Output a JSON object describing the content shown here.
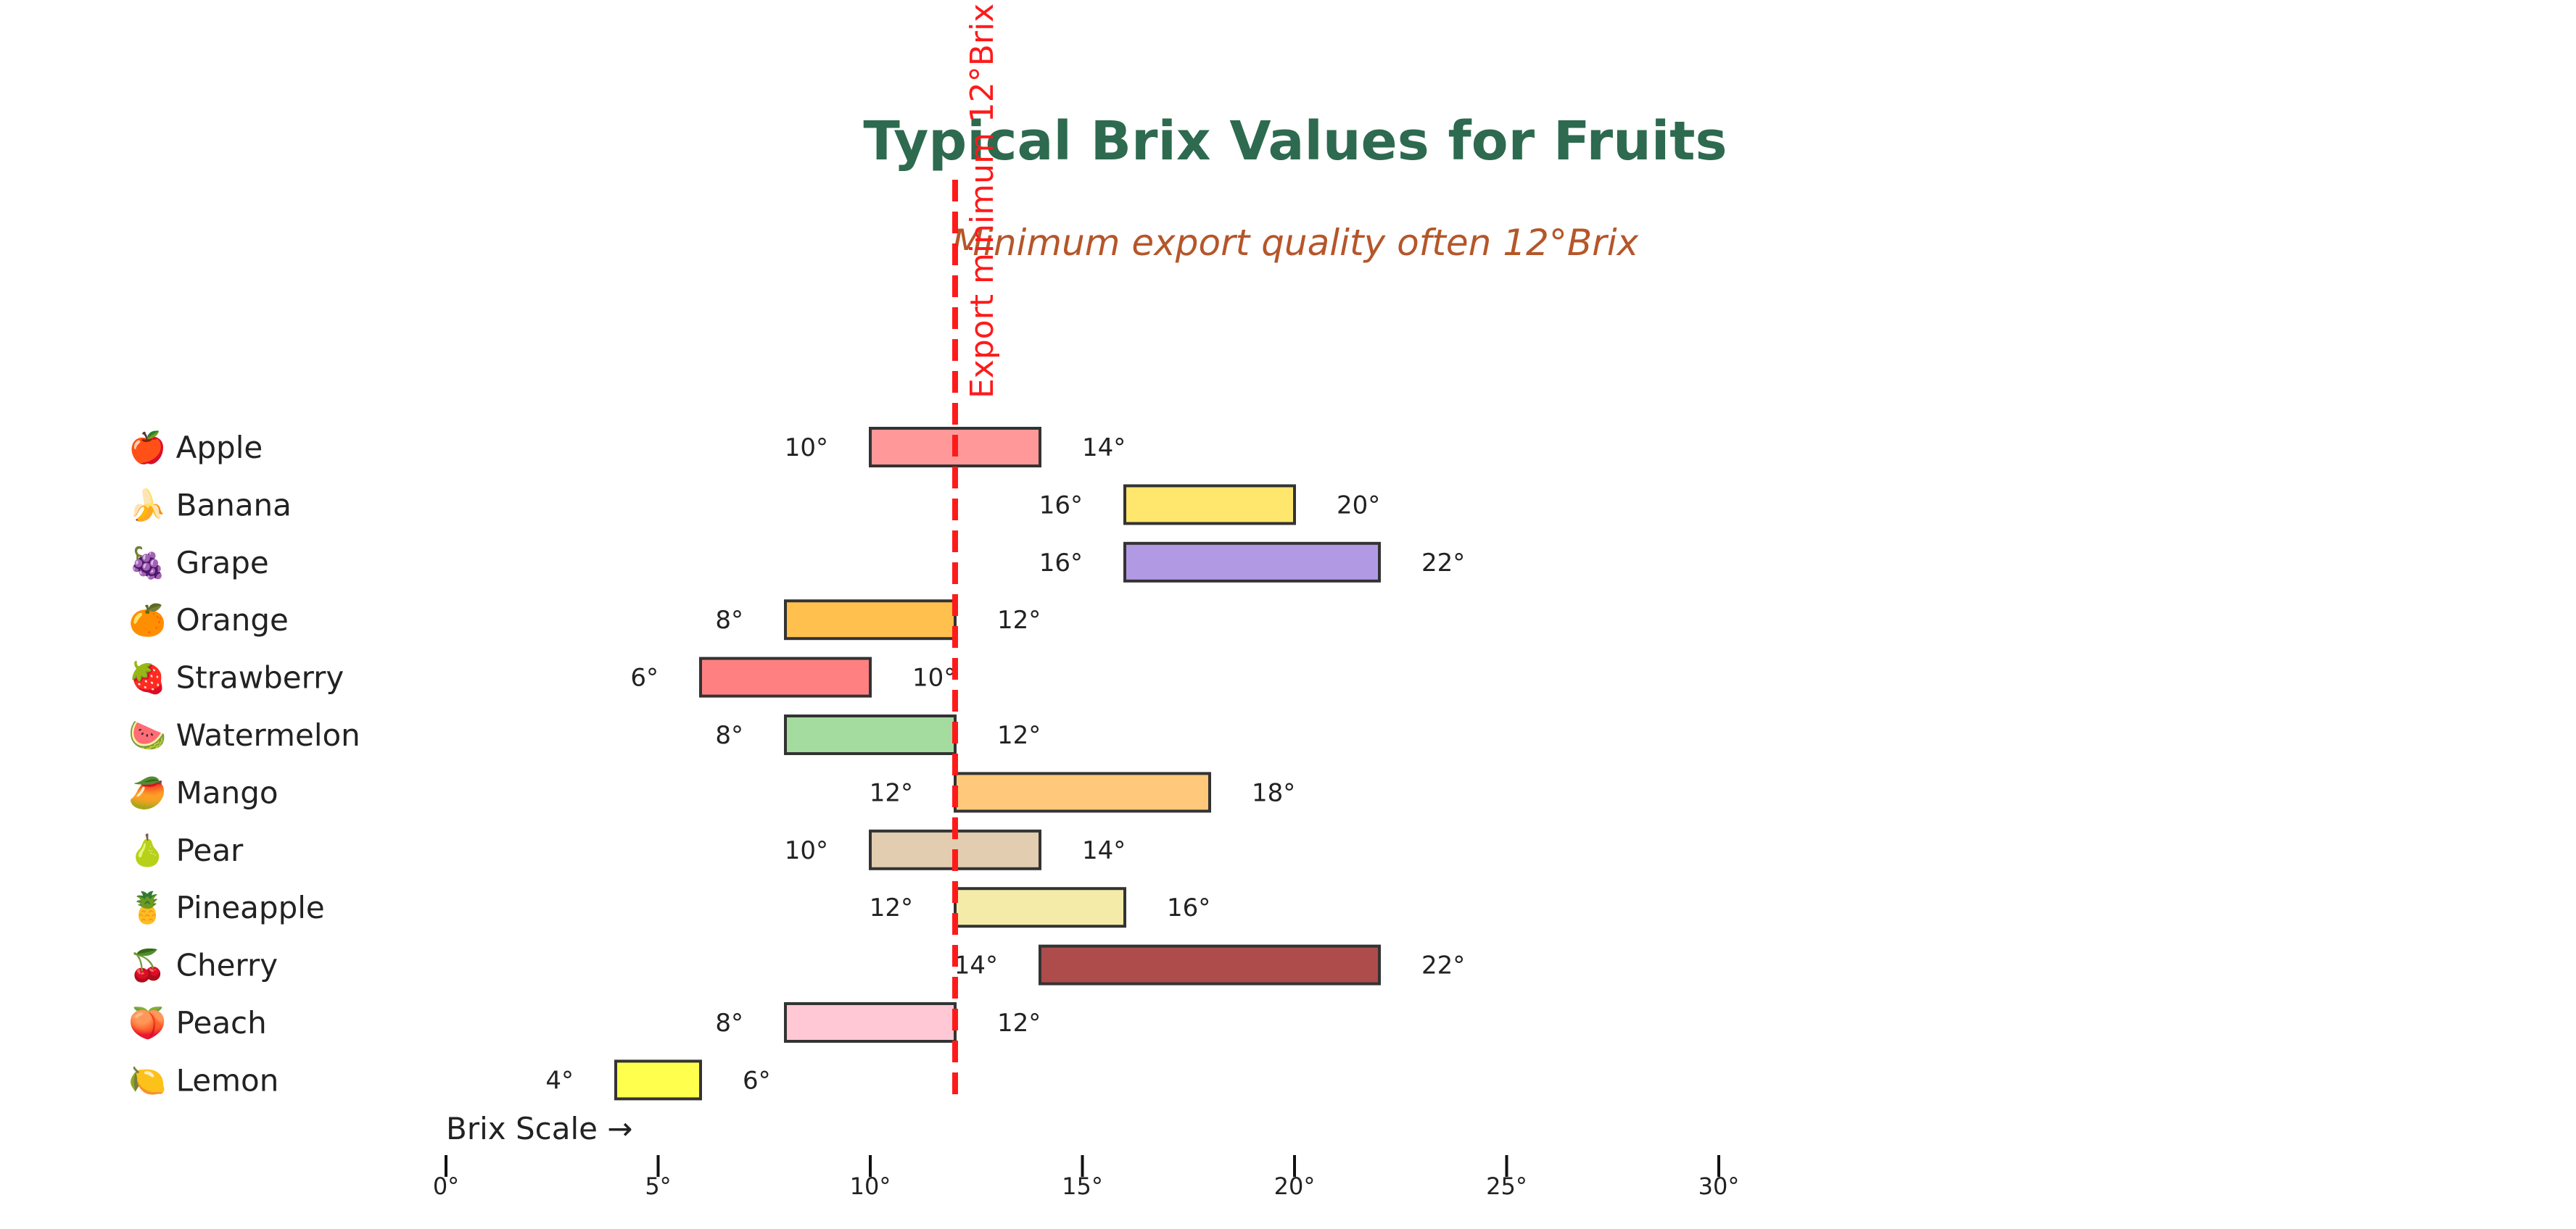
{
  "chart_data": {
    "type": "bar",
    "orientation": "horizontal-range",
    "title": "Typical Brix Values for Fruits",
    "subtitle": "Minimum export quality often 12°Brix",
    "xlabel": "Brix Scale →",
    "xlim": [
      0,
      30
    ],
    "xticks": [
      0,
      5,
      10,
      15,
      20,
      25,
      30
    ],
    "xtick_labels": [
      "0°",
      "5°",
      "10°",
      "15°",
      "20°",
      "25°",
      "30°"
    ],
    "grid": false,
    "reference_line": {
      "value": 12,
      "label": "Export minimum 12°Brix",
      "color": "#ff1a1a"
    },
    "categories": [
      {
        "label": "🍎 Apple",
        "min": 10,
        "max": 14,
        "min_label": "10°",
        "max_label": "14°",
        "color": "#ff9999"
      },
      {
        "label": "🍌 Banana",
        "min": 16,
        "max": 20,
        "min_label": "16°",
        "max_label": "20°",
        "color": "#ffe66d"
      },
      {
        "label": "🍇 Grape",
        "min": 16,
        "max": 22,
        "min_label": "16°",
        "max_label": "22°",
        "color": "#b19ae3"
      },
      {
        "label": "🍊 Orange",
        "min": 8,
        "max": 12,
        "min_label": "8°",
        "max_label": "12°",
        "color": "#ffc04d"
      },
      {
        "label": "🍓 Strawberry",
        "min": 6,
        "max": 10,
        "min_label": "6°",
        "max_label": "10°",
        "color": "#ff8080"
      },
      {
        "label": "🍉 Watermelon",
        "min": 8,
        "max": 12,
        "min_label": "8°",
        "max_label": "12°",
        "color": "#a4dca0"
      },
      {
        "label": "🥭 Mango",
        "min": 12,
        "max": 18,
        "min_label": "12°",
        "max_label": "18°",
        "color": "#ffc87a"
      },
      {
        "label": "🍐 Pear",
        "min": 10,
        "max": 14,
        "min_label": "10°",
        "max_label": "14°",
        "color": "#e2cdb0"
      },
      {
        "label": "🍍 Pineapple",
        "min": 12,
        "max": 16,
        "min_label": "12°",
        "max_label": "16°",
        "color": "#f5eba8"
      },
      {
        "label": "🍒 Cherry",
        "min": 14,
        "max": 22,
        "min_label": "14°",
        "max_label": "22°",
        "color": "#ae4b4b"
      },
      {
        "label": "🍑 Peach",
        "min": 8,
        "max": 12,
        "min_label": "8°",
        "max_label": "12°",
        "color": "#ffc8d4"
      },
      {
        "label": "🍋 Lemon",
        "min": 4,
        "max": 6,
        "min_label": "4°",
        "max_label": "6°",
        "color": "#ffff4d"
      }
    ]
  }
}
